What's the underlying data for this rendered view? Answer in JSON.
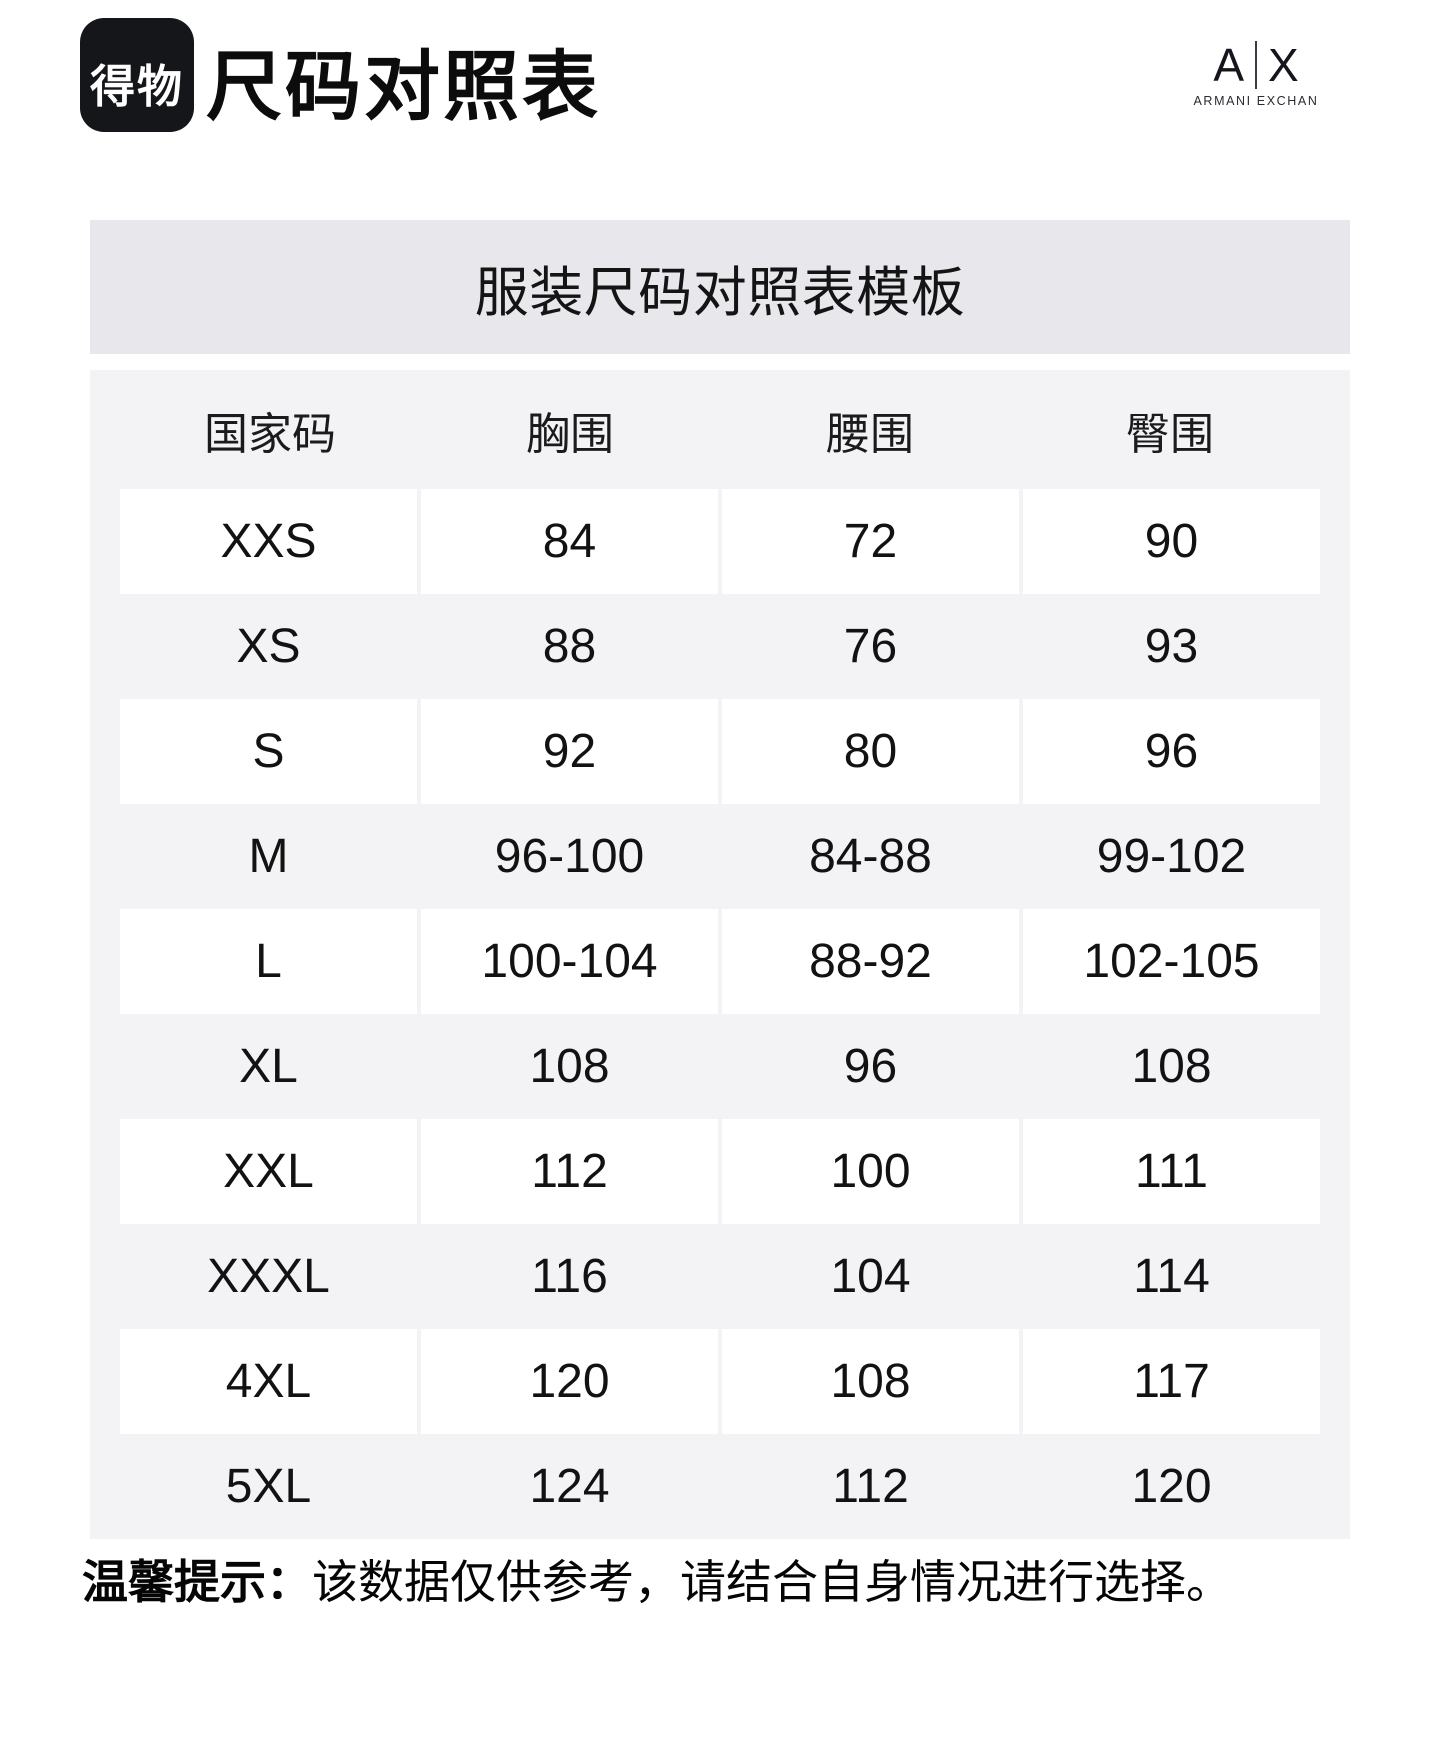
{
  "header": {
    "logo_text": "得物",
    "title": "尺码对照表",
    "brand": {
      "letter_left": "A",
      "letter_right": "X",
      "name": "ARMANI EXCHAN"
    }
  },
  "chart_data": {
    "type": "table",
    "title": "服装尺码对照表模板",
    "columns": [
      "国家码",
      "胸围",
      "腰围",
      "臀围"
    ],
    "rows": [
      [
        "XXS",
        "84",
        "72",
        "90"
      ],
      [
        "XS",
        "88",
        "76",
        "93"
      ],
      [
        "S",
        "92",
        "80",
        "96"
      ],
      [
        "M",
        "96-100",
        "84-88",
        "99-102"
      ],
      [
        "L",
        "100-104",
        "88-92",
        "102-105"
      ],
      [
        "XL",
        "108",
        "96",
        "108"
      ],
      [
        "XXL",
        "112",
        "100",
        "111"
      ],
      [
        "XXXL",
        "116",
        "104",
        "114"
      ],
      [
        "4XL",
        "120",
        "108",
        "117"
      ],
      [
        "5XL",
        "124",
        "112",
        "120"
      ]
    ],
    "layout": {
      "striped": "odd rows white, even rows grey",
      "grid": "off",
      "legend": "none"
    }
  },
  "note": {
    "label": "温馨提示：",
    "text": "该数据仅供参考，请结合自身情况进行选择。"
  },
  "colors": {
    "title_bar_bg": "#e8e7eb",
    "panel_bg": "#f3f3f6",
    "row_bg": "#ffffff",
    "logo_bg": "#15161a",
    "text": "#121212"
  }
}
